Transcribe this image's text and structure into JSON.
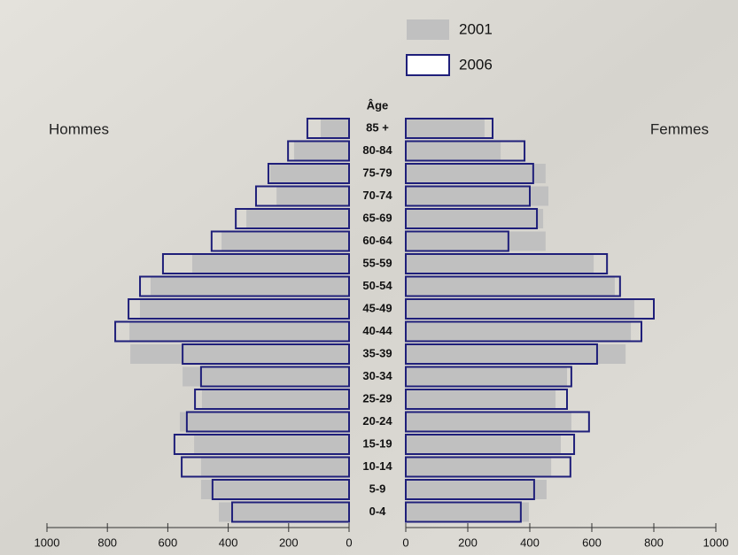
{
  "chart_data": {
    "type": "pyramid",
    "legend_title": "Âge",
    "left_label": "Hommes",
    "right_label": "Femmes",
    "categories": [
      "85 +",
      "80-84",
      "75-79",
      "70-74",
      "65-69",
      "60-64",
      "55-59",
      "50-54",
      "45-49",
      "40-44",
      "35-39",
      "30-34",
      "25-29",
      "20-24",
      "15-19",
      "10-14",
      "5-9",
      "0-4"
    ],
    "series": [
      {
        "name": "2001",
        "color": "#c0c0c0",
        "style": "filled",
        "left_values": [
          94,
          182,
          261,
          240,
          340,
          422,
          519,
          657,
          692,
          727,
          724,
          551,
          487,
          560,
          513,
          490,
          490,
          431
        ],
        "right_values": [
          254,
          306,
          451,
          460,
          443,
          451,
          606,
          674,
          737,
          726,
          709,
          520,
          483,
          534,
          500,
          469,
          454,
          397
        ]
      },
      {
        "name": "2006",
        "color": "#1f1f7a",
        "style": "outline",
        "left_values": [
          138,
          202,
          267,
          308,
          375,
          455,
          616,
          692,
          730,
          774,
          551,
          490,
          510,
          537,
          578,
          554,
          452,
          387
        ],
        "right_values": [
          280,
          383,
          411,
          400,
          423,
          331,
          649,
          691,
          800,
          760,
          617,
          534,
          520,
          591,
          543,
          531,
          414,
          371
        ]
      }
    ],
    "xlim": [
      0,
      1000
    ],
    "xticks": [
      0,
      200,
      400,
      600,
      800,
      1000
    ]
  }
}
